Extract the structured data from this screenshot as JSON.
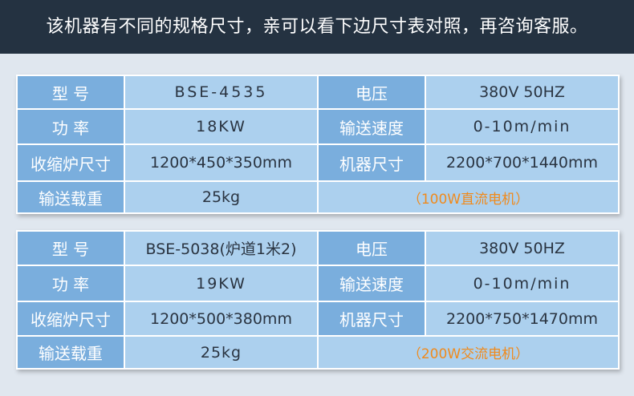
{
  "header": {
    "title": "该机器有不同的规格尺寸，亲可以看下边尺寸表对照，再咨询客服。"
  },
  "colors": {
    "header_bg": "#243241",
    "label_cell": "#7aaedd",
    "value_cell": "#acd0ee",
    "note": "#f08a1c"
  },
  "tables": [
    {
      "rows": [
        {
          "k1": "型 号",
          "v1": "BSE-4535",
          "k2": "电压",
          "v2": "380V 50HZ"
        },
        {
          "k1": "功 率",
          "v1": "18KW",
          "k2": "输送速度",
          "v2": "0-10m/min"
        },
        {
          "k1": "收缩炉尺寸",
          "v1": "1200*450*350mm",
          "k2": "机器尺寸",
          "v2": "2200*700*1440mm"
        },
        {
          "k1": "输送载重",
          "v1": "25kg",
          "note": "（100W直流电机）"
        }
      ]
    },
    {
      "rows": [
        {
          "k1": "型 号",
          "v1": "BSE-5038(炉道1米2)",
          "k2": "电压",
          "v2": "380V 50HZ"
        },
        {
          "k1": "功 率",
          "v1": "19KW",
          "k2": "输送速度",
          "v2": "0-10m/min"
        },
        {
          "k1": "收缩炉尺寸",
          "v1": "1200*500*380mm",
          "k2": "机器尺寸",
          "v2": "2200*750*1470mm"
        },
        {
          "k1": "输送载重",
          "v1": "25kg",
          "note": "（200W交流电机）"
        }
      ]
    }
  ]
}
